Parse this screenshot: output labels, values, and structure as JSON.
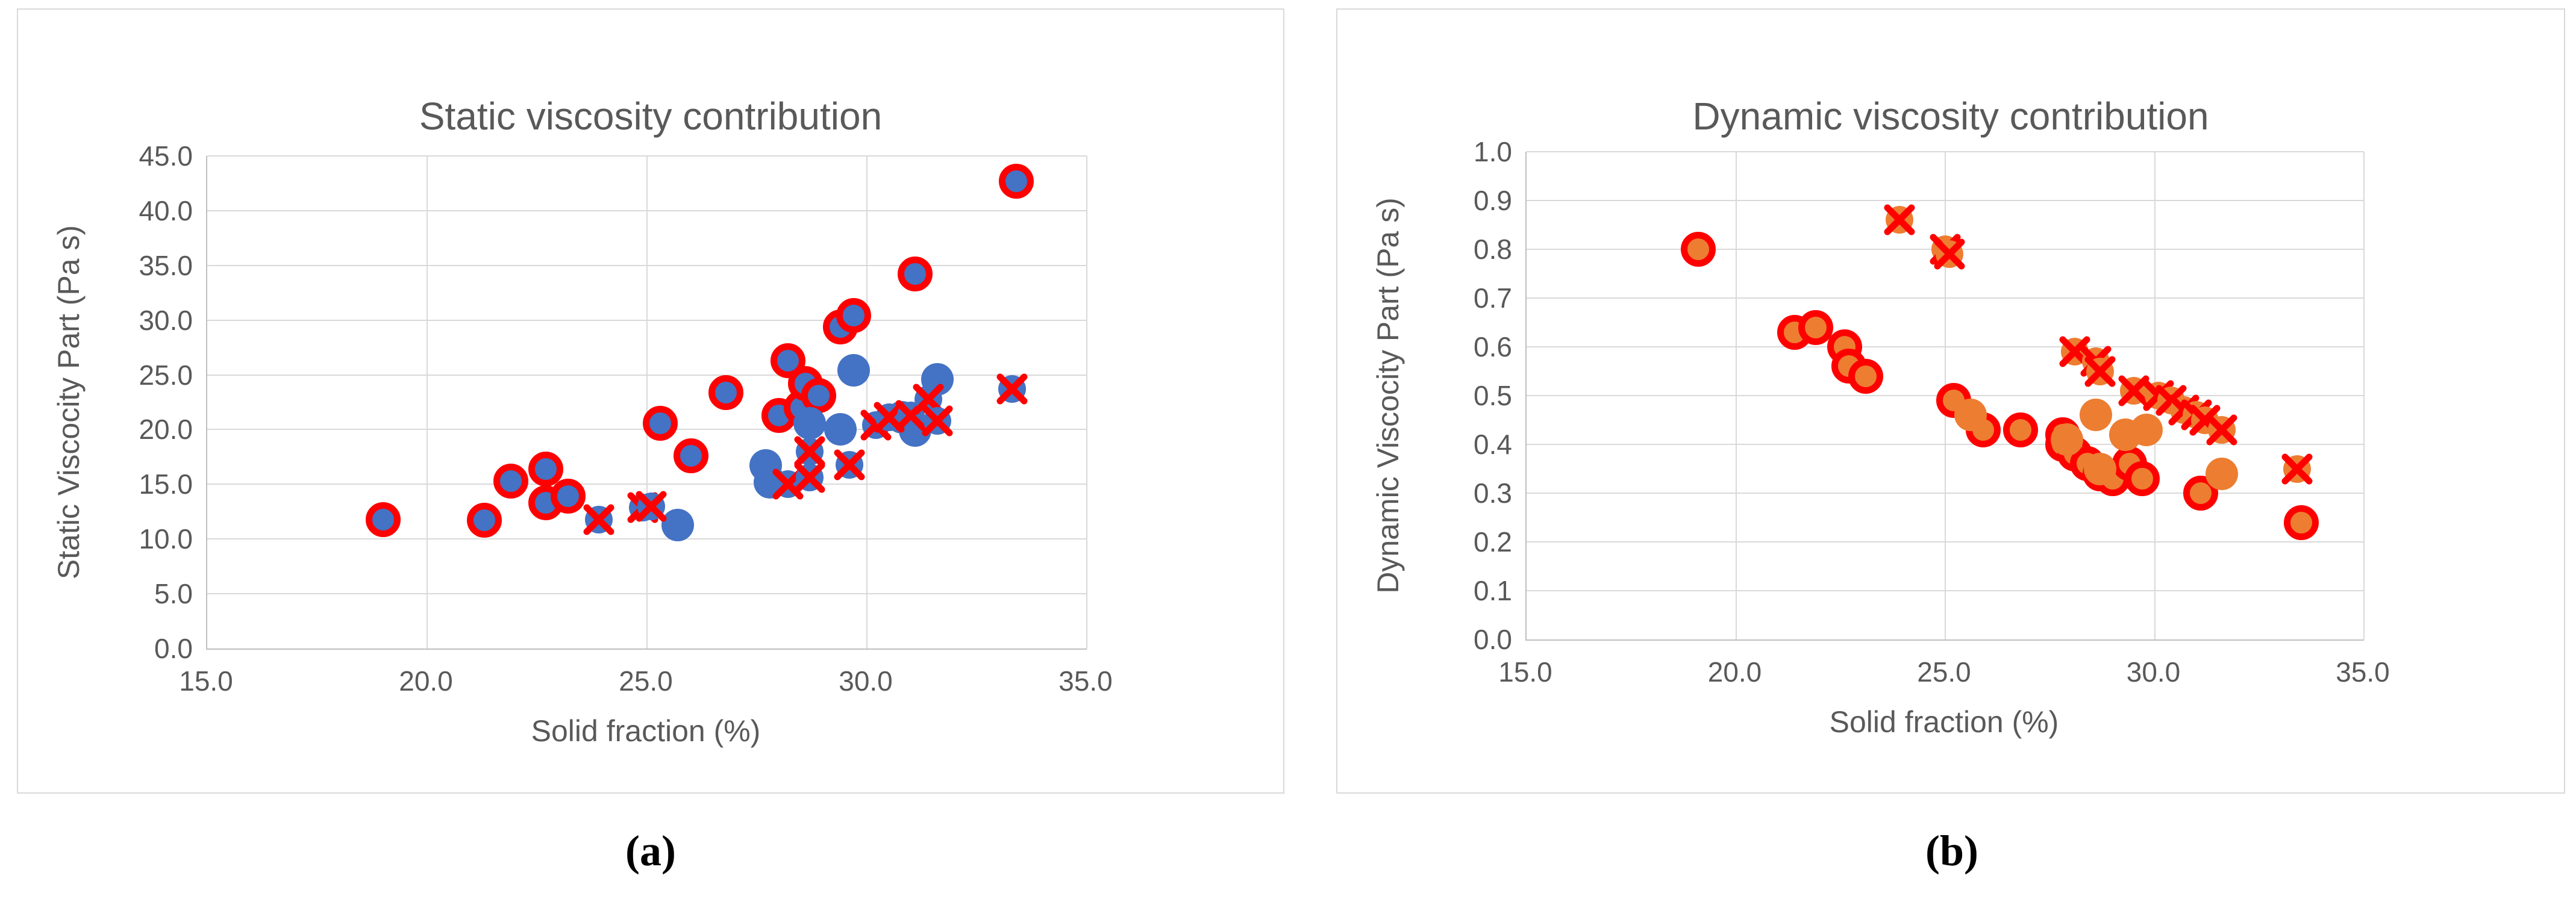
{
  "captions": {
    "a": "(a)",
    "b": "(b)"
  },
  "colors": {
    "blue": "#4472c4",
    "orange": "#ed7d31",
    "red": "#ff0000",
    "gridline": "#d9d9d9",
    "axis_line": "#bfbfbf",
    "text": "#595959"
  },
  "chart_data": [
    {
      "type": "scatter",
      "title": "Static viscosity contribution",
      "xlabel": "Solid fraction (%)",
      "ylabel": "Static Viscocity Part (Pa s)",
      "xlim": [
        15,
        35
      ],
      "ylim": [
        0,
        45
      ],
      "x_ticks": [
        "15.0",
        "20.0",
        "25.0",
        "30.0",
        "35.0"
      ],
      "y_ticks": [
        "0.0",
        "5.0",
        "10.0",
        "15.0",
        "20.0",
        "25.0",
        "30.0",
        "35.0",
        "40.0",
        "45.0"
      ],
      "grid": true,
      "legend": false,
      "series": [
        {
          "name": "blue-circle-red-outline",
          "marker": "ring-circle",
          "fill": "#4472c4",
          "ring": "#ff0000",
          "points": [
            [
              19.0,
              11.8
            ],
            [
              21.3,
              11.7
            ],
            [
              21.9,
              15.3
            ],
            [
              22.7,
              16.4
            ],
            [
              22.7,
              13.3
            ],
            [
              23.2,
              13.9
            ],
            [
              25.3,
              20.6
            ],
            [
              26.0,
              17.6
            ],
            [
              26.8,
              23.4
            ],
            [
              28.0,
              21.3
            ],
            [
              28.2,
              26.3
            ],
            [
              28.5,
              22.0
            ],
            [
              28.6,
              24.2
            ],
            [
              28.9,
              23.1
            ],
            [
              29.4,
              29.4
            ],
            [
              29.7,
              30.4
            ],
            [
              31.1,
              34.2
            ],
            [
              33.4,
              42.7
            ]
          ]
        },
        {
          "name": "blue-circle",
          "marker": "circle",
          "fill": "#4472c4",
          "points": [
            [
              25.7,
              11.3
            ],
            [
              27.7,
              16.7
            ],
            [
              27.8,
              15.2
            ],
            [
              28.7,
              20.6
            ],
            [
              29.4,
              20.0
            ],
            [
              29.7,
              25.4
            ],
            [
              30.8,
              21.1
            ],
            [
              31.1,
              19.9
            ],
            [
              31.6,
              24.6
            ]
          ]
        },
        {
          "name": "red-x-on-blue",
          "marker": "x-circle",
          "fill": "#4472c4",
          "x_color": "#ff0000",
          "points": [
            [
              23.9,
              11.8
            ],
            [
              24.9,
              12.9
            ],
            [
              25.1,
              13.0
            ],
            [
              28.2,
              15.0
            ],
            [
              28.7,
              15.6
            ],
            [
              28.7,
              18.0
            ],
            [
              29.6,
              16.8
            ],
            [
              30.2,
              20.4
            ],
            [
              30.5,
              21.1
            ],
            [
              31.0,
              21.3
            ],
            [
              31.4,
              22.8
            ],
            [
              31.6,
              20.8
            ],
            [
              33.3,
              23.7
            ]
          ]
        }
      ]
    },
    {
      "type": "scatter",
      "title": "Dynamic viscosity contribution",
      "xlabel": "Solid fraction (%)",
      "ylabel": "Dynamic Viscocity Part (Pa s)",
      "xlim": [
        15,
        35
      ],
      "ylim": [
        0,
        1
      ],
      "x_ticks": [
        "15.0",
        "20.0",
        "25.0",
        "30.0",
        "35.0"
      ],
      "y_ticks": [
        "0.0",
        "0.1",
        "0.2",
        "0.3",
        "0.4",
        "0.5",
        "0.6",
        "0.7",
        "0.8",
        "0.9",
        "1.0"
      ],
      "grid": true,
      "legend": false,
      "series": [
        {
          "name": "orange-circle-red-outline",
          "marker": "ring-circle",
          "fill": "#ed7d31",
          "ring": "#ff0000",
          "points": [
            [
              19.1,
              0.8
            ],
            [
              21.4,
              0.63
            ],
            [
              21.9,
              0.64
            ],
            [
              22.6,
              0.6
            ],
            [
              22.7,
              0.56
            ],
            [
              23.1,
              0.54
            ],
            [
              25.2,
              0.49
            ],
            [
              25.9,
              0.43
            ],
            [
              26.8,
              0.43
            ],
            [
              27.8,
              0.42
            ],
            [
              27.8,
              0.4
            ],
            [
              28.1,
              0.38
            ],
            [
              28.4,
              0.36
            ],
            [
              28.7,
              0.34
            ],
            [
              29.0,
              0.33
            ],
            [
              29.4,
              0.36
            ],
            [
              29.7,
              0.33
            ],
            [
              31.1,
              0.3
            ],
            [
              33.5,
              0.24
            ]
          ]
        },
        {
          "name": "orange-circle",
          "marker": "circle",
          "fill": "#ed7d31",
          "points": [
            [
              25.6,
              0.46
            ],
            [
              27.9,
              0.41
            ],
            [
              28.6,
              0.46
            ],
            [
              28.7,
              0.35
            ],
            [
              29.3,
              0.42
            ],
            [
              29.8,
              0.43
            ],
            [
              31.6,
              0.34
            ]
          ]
        },
        {
          "name": "red-x-on-orange",
          "marker": "x-circle",
          "fill": "#ed7d31",
          "x_color": "#ff0000",
          "points": [
            [
              23.9,
              0.86
            ],
            [
              25.0,
              0.8
            ],
            [
              25.1,
              0.79
            ],
            [
              28.1,
              0.59
            ],
            [
              28.6,
              0.57
            ],
            [
              28.7,
              0.55
            ],
            [
              29.5,
              0.51
            ],
            [
              30.1,
              0.5
            ],
            [
              30.4,
              0.49
            ],
            [
              30.7,
              0.47
            ],
            [
              31.0,
              0.46
            ],
            [
              31.2,
              0.45
            ],
            [
              31.6,
              0.43
            ],
            [
              33.4,
              0.35
            ]
          ]
        }
      ]
    }
  ]
}
